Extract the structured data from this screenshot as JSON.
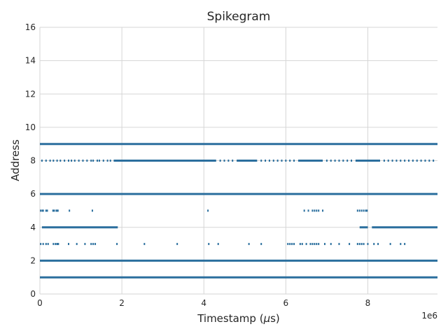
{
  "chart_data": {
    "type": "scatter",
    "title": "Spikegram",
    "xlabel_prefix": "Timestamp (",
    "xlabel_mu": "μ",
    "xlabel_suffix": "s)",
    "ylabel": "Address",
    "x_offset_label": "1e6",
    "xlim": [
      0,
      9700000
    ],
    "ylim": [
      0,
      16
    ],
    "x_ticks": [
      0,
      2000000,
      4000000,
      6000000,
      8000000
    ],
    "x_tick_labels": [
      "0",
      "2",
      "4",
      "6",
      "8"
    ],
    "y_ticks": [
      0,
      2,
      4,
      6,
      8,
      10,
      12,
      14,
      16
    ],
    "y_tick_labels": [
      "0",
      "2",
      "4",
      "6",
      "8",
      "10",
      "12",
      "14",
      "16"
    ],
    "grid": true,
    "marker_color": "#2b6f9e",
    "dense_segments": [
      {
        "address": 9,
        "x_start": 0,
        "x_end": 9700000
      },
      {
        "address": 6,
        "x_start": 0,
        "x_end": 9700000
      },
      {
        "address": 2,
        "x_start": 0,
        "x_end": 9700000
      },
      {
        "address": 1,
        "x_start": 0,
        "x_end": 9700000
      },
      {
        "address": 8,
        "x_start": 1800000,
        "x_end": 4300000
      },
      {
        "address": 8,
        "x_start": 4800000,
        "x_end": 5300000
      },
      {
        "address": 8,
        "x_start": 6300000,
        "x_end": 6900000
      },
      {
        "address": 8,
        "x_start": 7700000,
        "x_end": 8300000
      },
      {
        "address": 4,
        "x_start": 50000,
        "x_end": 1900000
      },
      {
        "address": 4,
        "x_start": 7800000,
        "x_end": 8000000
      },
      {
        "address": 4,
        "x_start": 8100000,
        "x_end": 9700000
      }
    ],
    "spikes": [
      {
        "address": 8,
        "x": [
          50000,
          150000,
          250000,
          330000,
          420000,
          500000,
          600000,
          700000,
          770000,
          850000,
          950000,
          1050000,
          1150000,
          1250000,
          1300000,
          1400000,
          1450000,
          1550000,
          1650000,
          1720000,
          4400000,
          4500000,
          4600000,
          4700000,
          5400000,
          5500000,
          5600000,
          5700000,
          5800000,
          5900000,
          6000000,
          6100000,
          6200000,
          7000000,
          7100000,
          7200000,
          7300000,
          7400000,
          7500000,
          7600000,
          8400000,
          8500000,
          8600000,
          8700000,
          8800000,
          8900000,
          9000000,
          9100000,
          9200000,
          9300000,
          9400000,
          9500000,
          9600000
        ]
      },
      {
        "address": 5,
        "x": [
          20000,
          60000,
          80000,
          150000,
          180000,
          320000,
          350000,
          400000,
          420000,
          440000,
          720000,
          1280000,
          4100000,
          6450000,
          6550000,
          6650000,
          6700000,
          6750000,
          6800000,
          6900000,
          7750000,
          7800000,
          7850000,
          7900000,
          7950000,
          7980000
        ]
      },
      {
        "address": 3,
        "x": [
          20000,
          80000,
          150000,
          200000,
          330000,
          380000,
          420000,
          450000,
          700000,
          900000,
          1100000,
          1250000,
          1300000,
          1350000,
          1880000,
          2550000,
          3350000,
          4120000,
          4350000,
          5100000,
          5400000,
          6050000,
          6100000,
          6150000,
          6200000,
          6350000,
          6400000,
          6500000,
          6600000,
          6650000,
          6700000,
          6750000,
          6800000,
          6950000,
          7100000,
          7300000,
          7550000,
          7750000,
          7800000,
          7850000,
          7900000,
          8000000,
          8150000,
          8250000,
          8550000,
          8800000,
          8900000
        ]
      }
    ]
  }
}
